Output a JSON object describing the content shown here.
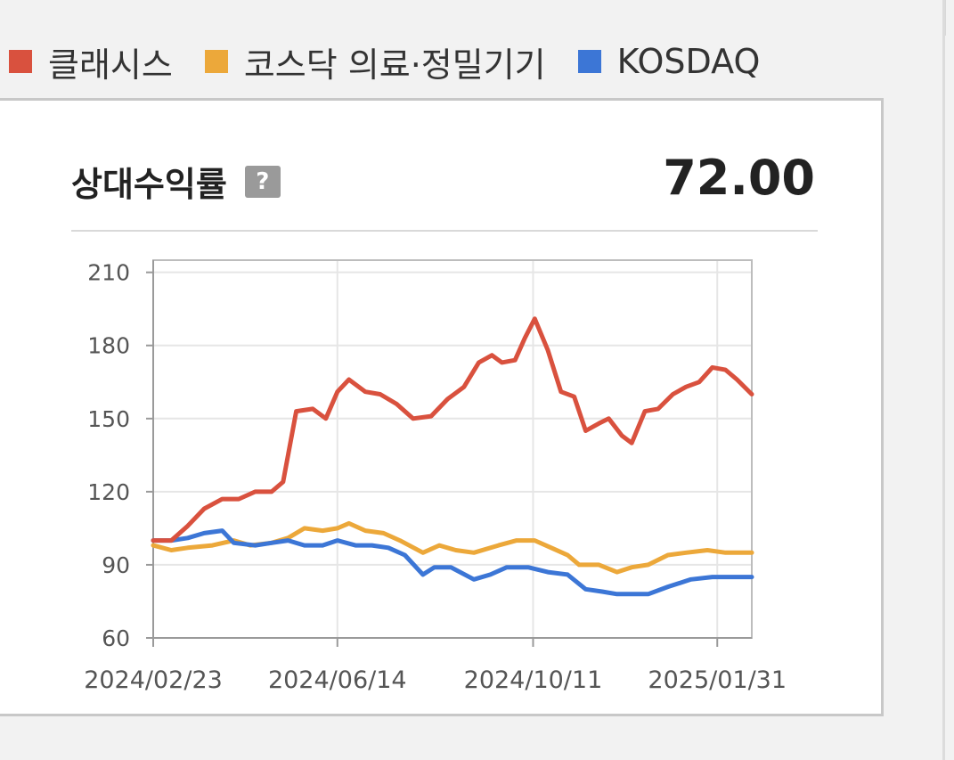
{
  "legend": [
    {
      "label": "클래시스",
      "color": "#d9513e"
    },
    {
      "label": "코스닥 의료·정밀기기",
      "color": "#eca83a"
    },
    {
      "label": "KOSDAQ",
      "color": "#3c76d6"
    }
  ],
  "panel": {
    "title": "상대수익률",
    "help_icon_label": "?",
    "value": "72.00"
  },
  "chart_data": {
    "type": "line",
    "ylim": [
      60,
      210
    ],
    "yticks": [
      210,
      180,
      150,
      120,
      90,
      60
    ],
    "xlim": [
      "2024-02-23",
      "2025-02-21"
    ],
    "xticks": [
      "2024/02/23",
      "2024/06/14",
      "2024/10/11",
      "2025/01/31"
    ],
    "grid": true,
    "series": [
      {
        "name": "클래시스",
        "color": "#d9513e",
        "points": [
          [
            "2024-02-23",
            100
          ],
          [
            "2024-03-05",
            100
          ],
          [
            "2024-03-15",
            106
          ],
          [
            "2024-03-25",
            113
          ],
          [
            "2024-04-05",
            117
          ],
          [
            "2024-04-15",
            117
          ],
          [
            "2024-04-25",
            120
          ],
          [
            "2024-05-05",
            120
          ],
          [
            "2024-05-12",
            124
          ],
          [
            "2024-05-20",
            153
          ],
          [
            "2024-05-30",
            154
          ],
          [
            "2024-06-07",
            150
          ],
          [
            "2024-06-14",
            161
          ],
          [
            "2024-06-21",
            166
          ],
          [
            "2024-07-01",
            161
          ],
          [
            "2024-07-10",
            160
          ],
          [
            "2024-07-20",
            156
          ],
          [
            "2024-07-30",
            150
          ],
          [
            "2024-08-10",
            151
          ],
          [
            "2024-08-20",
            158
          ],
          [
            "2024-08-30",
            163
          ],
          [
            "2024-09-08",
            173
          ],
          [
            "2024-09-16",
            176
          ],
          [
            "2024-09-22",
            173
          ],
          [
            "2024-09-30",
            174
          ],
          [
            "2024-10-06",
            183
          ],
          [
            "2024-10-12",
            191
          ],
          [
            "2024-10-20",
            178
          ],
          [
            "2024-10-28",
            161
          ],
          [
            "2024-11-05",
            159
          ],
          [
            "2024-11-12",
            145
          ],
          [
            "2024-11-20",
            148
          ],
          [
            "2024-11-26",
            150
          ],
          [
            "2024-12-04",
            143
          ],
          [
            "2024-12-10",
            140
          ],
          [
            "2024-12-18",
            153
          ],
          [
            "2024-12-26",
            154
          ],
          [
            "2025-01-04",
            160
          ],
          [
            "2025-01-12",
            163
          ],
          [
            "2025-01-20",
            165
          ],
          [
            "2025-01-28",
            171
          ],
          [
            "2025-02-05",
            170
          ],
          [
            "2025-02-12",
            166
          ],
          [
            "2025-02-21",
            160
          ]
        ]
      },
      {
        "name": "코스닥 의료·정밀기기",
        "color": "#eca83a",
        "points": [
          [
            "2024-02-23",
            98
          ],
          [
            "2024-03-05",
            96
          ],
          [
            "2024-03-15",
            97
          ],
          [
            "2024-03-30",
            98
          ],
          [
            "2024-04-12",
            100
          ],
          [
            "2024-04-22",
            98
          ],
          [
            "2024-05-05",
            99
          ],
          [
            "2024-05-15",
            101
          ],
          [
            "2024-05-25",
            105
          ],
          [
            "2024-06-05",
            104
          ],
          [
            "2024-06-14",
            105
          ],
          [
            "2024-06-21",
            107
          ],
          [
            "2024-07-01",
            104
          ],
          [
            "2024-07-12",
            103
          ],
          [
            "2024-07-22",
            100
          ],
          [
            "2024-08-05",
            95
          ],
          [
            "2024-08-15",
            98
          ],
          [
            "2024-08-25",
            96
          ],
          [
            "2024-09-05",
            95
          ],
          [
            "2024-09-20",
            98
          ],
          [
            "2024-10-01",
            100
          ],
          [
            "2024-10-12",
            100
          ],
          [
            "2024-10-22",
            97
          ],
          [
            "2024-11-01",
            94
          ],
          [
            "2024-11-08",
            90
          ],
          [
            "2024-11-20",
            90
          ],
          [
            "2024-12-01",
            87
          ],
          [
            "2024-12-10",
            89
          ],
          [
            "2024-12-20",
            90
          ],
          [
            "2025-01-01",
            94
          ],
          [
            "2025-01-12",
            95
          ],
          [
            "2025-01-25",
            96
          ],
          [
            "2025-02-05",
            95
          ],
          [
            "2025-02-21",
            95
          ]
        ]
      },
      {
        "name": "KOSDAQ",
        "color": "#3c76d6",
        "points": [
          [
            "2024-02-23",
            100
          ],
          [
            "2024-03-05",
            100
          ],
          [
            "2024-03-15",
            101
          ],
          [
            "2024-03-25",
            103
          ],
          [
            "2024-04-05",
            104
          ],
          [
            "2024-04-12",
            99
          ],
          [
            "2024-04-25",
            98
          ],
          [
            "2024-05-05",
            99
          ],
          [
            "2024-05-15",
            100
          ],
          [
            "2024-05-25",
            98
          ],
          [
            "2024-06-05",
            98
          ],
          [
            "2024-06-14",
            100
          ],
          [
            "2024-06-25",
            98
          ],
          [
            "2024-07-05",
            98
          ],
          [
            "2024-07-15",
            97
          ],
          [
            "2024-07-25",
            94
          ],
          [
            "2024-08-05",
            86
          ],
          [
            "2024-08-12",
            89
          ],
          [
            "2024-08-22",
            89
          ],
          [
            "2024-09-05",
            84
          ],
          [
            "2024-09-15",
            86
          ],
          [
            "2024-09-25",
            89
          ],
          [
            "2024-10-08",
            89
          ],
          [
            "2024-10-20",
            87
          ],
          [
            "2024-11-01",
            86
          ],
          [
            "2024-11-12",
            80
          ],
          [
            "2024-11-22",
            79
          ],
          [
            "2024-12-01",
            78
          ],
          [
            "2024-12-20",
            78
          ],
          [
            "2025-01-01",
            81
          ],
          [
            "2025-01-15",
            84
          ],
          [
            "2025-01-28",
            85
          ],
          [
            "2025-02-10",
            85
          ],
          [
            "2025-02-21",
            85
          ]
        ]
      }
    ]
  }
}
